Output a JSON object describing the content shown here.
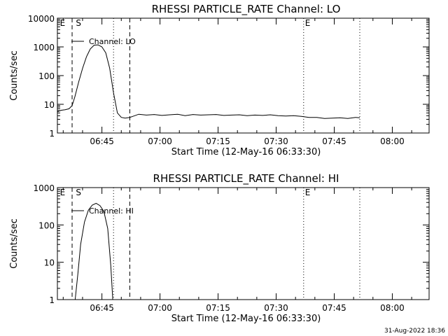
{
  "footer_timestamp": "31-Aug-2022 18:36",
  "chart_data": [
    {
      "type": "line",
      "title": "RHESSI PARTICLE_RATE Channel: LO",
      "xlabel": "Start Time (12-May-16 06:33:30)",
      "ylabel": "Counts/sec",
      "yscale": "log",
      "ylim": [
        1,
        10000
      ],
      "xlim_minutes": [
        0,
        96
      ],
      "x_unit": "minutes after 06:33:30",
      "x_ticks": [
        {
          "value": 11.5,
          "label": "06:45"
        },
        {
          "value": 26.5,
          "label": "07:00"
        },
        {
          "value": 41.5,
          "label": "07:15"
        },
        {
          "value": 56.5,
          "label": "07:30"
        },
        {
          "value": 71.5,
          "label": "07:45"
        },
        {
          "value": 86.5,
          "label": "08:00"
        }
      ],
      "y_ticks": [
        {
          "value": 1,
          "label": "1"
        },
        {
          "value": 10,
          "label": "10"
        },
        {
          "value": 100,
          "label": "100"
        },
        {
          "value": 1000,
          "label": "1000"
        },
        {
          "value": 10000,
          "label": "10000"
        }
      ],
      "legend": {
        "label": "Channel: LO",
        "position": "top-left"
      },
      "markers": [
        {
          "x": 3.8,
          "style": "dashed"
        },
        {
          "x": 14.5,
          "style": "dotted"
        },
        {
          "x": 18.7,
          "style": "dashed"
        },
        {
          "x": 63.6,
          "style": "dotted"
        },
        {
          "x": 78.1,
          "style": "dotted"
        }
      ],
      "marker_letters": [
        {
          "x": 0.3,
          "text": "E"
        },
        {
          "x": 4.4,
          "text": "S"
        },
        {
          "x": 63.6,
          "text": "E"
        }
      ],
      "series": [
        {
          "x": [
            0,
            1,
            2,
            3,
            3.8,
            4.5,
            5.5,
            6.5,
            7.5,
            8.5,
            9.5,
            10.5,
            11.5,
            12.5,
            13.5,
            14.5,
            15.5,
            16.5,
            17.5,
            18.7,
            19.5,
            21,
            23,
            25,
            27,
            29,
            31,
            33,
            35,
            37,
            39,
            41,
            43,
            45,
            47,
            49,
            51,
            53,
            55,
            57,
            59,
            61,
            63,
            65,
            67,
            69,
            71,
            73,
            75,
            77,
            78.1
          ],
          "y": [
            5.5,
            6.2,
            6.5,
            7,
            9,
            18,
            60,
            180,
            450,
            850,
            1150,
            1180,
            1000,
            620,
            180,
            25,
            5,
            3.5,
            3.3,
            3.5,
            3.8,
            4.5,
            4.2,
            4.4,
            4.1,
            4.3,
            4.5,
            4.0,
            4.4,
            4.2,
            4.3,
            4.4,
            4.1,
            4.2,
            4.3,
            4.0,
            4.2,
            4.1,
            4.3,
            4.0,
            3.9,
            4.0,
            3.8,
            3.5,
            3.5,
            3.2,
            3.3,
            3.4,
            3.2,
            3.5,
            3.4
          ]
        }
      ]
    },
    {
      "type": "line",
      "title": "RHESSI PARTICLE_RATE Channel: HI",
      "xlabel": "Start Time (12-May-16 06:33:30)",
      "ylabel": "Counts/sec",
      "yscale": "log",
      "ylim": [
        1,
        1000
      ],
      "xlim_minutes": [
        0,
        96
      ],
      "x_unit": "minutes after 06:33:30",
      "x_ticks": [
        {
          "value": 11.5,
          "label": "06:45"
        },
        {
          "value": 26.5,
          "label": "07:00"
        },
        {
          "value": 41.5,
          "label": "07:15"
        },
        {
          "value": 56.5,
          "label": "07:30"
        },
        {
          "value": 71.5,
          "label": "07:45"
        },
        {
          "value": 86.5,
          "label": "08:00"
        }
      ],
      "y_ticks": [
        {
          "value": 1,
          "label": "1"
        },
        {
          "value": 10,
          "label": "10"
        },
        {
          "value": 100,
          "label": "100"
        },
        {
          "value": 1000,
          "label": "1000"
        }
      ],
      "legend": {
        "label": "Channel: HI",
        "position": "top-left"
      },
      "markers": [
        {
          "x": 3.8,
          "style": "dashed"
        },
        {
          "x": 14.5,
          "style": "dotted"
        },
        {
          "x": 18.7,
          "style": "dashed"
        },
        {
          "x": 63.6,
          "style": "dotted"
        },
        {
          "x": 78.1,
          "style": "dotted"
        }
      ],
      "marker_letters": [
        {
          "x": 0.3,
          "text": "E"
        },
        {
          "x": 4.4,
          "text": "S"
        },
        {
          "x": 63.6,
          "text": "E"
        }
      ],
      "series": [
        {
          "x": [
            4.6,
            5.3,
            6.0,
            7.0,
            8.0,
            9.0,
            10.0,
            11.0,
            12.0,
            13.0,
            13.8,
            14.3
          ],
          "y": [
            1,
            5,
            30,
            120,
            250,
            340,
            380,
            330,
            230,
            80,
            8,
            1
          ]
        }
      ]
    }
  ]
}
